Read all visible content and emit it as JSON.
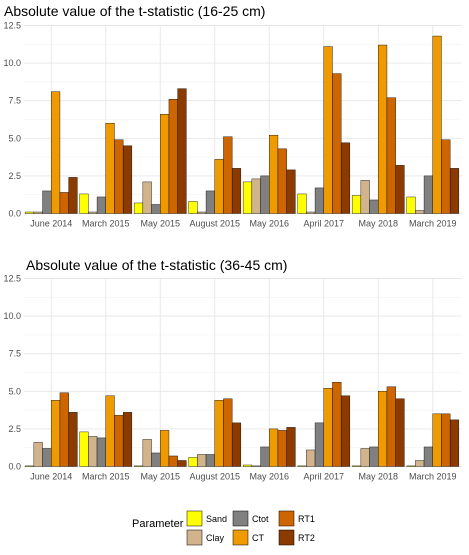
{
  "chart_data": [
    {
      "type": "bar",
      "title": "Absolute value of the t-statistic (16-25 cm)",
      "xlabel": "",
      "ylabel": "",
      "ylim": [
        0,
        12.5
      ],
      "yticks": [
        "0.0",
        "2.5",
        "5.0",
        "7.5",
        "10.0",
        "12.5"
      ],
      "grid": true,
      "categories": [
        "June 2014",
        "March 2015",
        "May 2015",
        "August 2015",
        "May 2016",
        "April 2017",
        "May 2018",
        "March 2019"
      ],
      "series": [
        {
          "name": "Sand",
          "color": "#ffff00",
          "values": [
            0.1,
            1.3,
            0.7,
            0.8,
            2.1,
            1.3,
            1.2,
            1.1
          ]
        },
        {
          "name": "Clay",
          "color": "#d2b48c",
          "values": [
            0.1,
            0.1,
            2.1,
            0.1,
            2.3,
            0.1,
            2.2,
            0.2
          ]
        },
        {
          "name": "Ctot",
          "color": "#808080",
          "values": [
            1.5,
            1.1,
            0.6,
            1.5,
            2.5,
            1.7,
            0.9,
            2.5
          ]
        },
        {
          "name": "CT",
          "color": "#ee9a00",
          "values": [
            8.1,
            6.0,
            6.6,
            3.6,
            5.2,
            11.1,
            11.2,
            11.8
          ]
        },
        {
          "name": "RT1",
          "color": "#cd6600",
          "values": [
            1.4,
            4.9,
            7.6,
            5.1,
            4.3,
            9.3,
            7.7,
            4.9
          ]
        },
        {
          "name": "RT2",
          "color": "#8b3a00",
          "values": [
            2.4,
            4.5,
            8.3,
            3.0,
            2.9,
            4.7,
            3.2,
            3.0
          ]
        }
      ]
    },
    {
      "type": "bar",
      "title": "Absolute value of the t-statistic (36-45 cm)",
      "xlabel": "",
      "ylabel": "",
      "ylim": [
        0,
        12.5
      ],
      "yticks": [
        "0.0",
        "2.5",
        "5.0",
        "7.5",
        "10.0",
        "12.5"
      ],
      "grid": true,
      "categories": [
        "June 2014",
        "March 2015",
        "May 2015",
        "August 2015",
        "May 2016",
        "April 2017",
        "May 2018",
        "March 2019"
      ],
      "series": [
        {
          "name": "Sand",
          "color": "#ffff00",
          "values": [
            0.0,
            2.3,
            0.0,
            0.6,
            0.1,
            0.0,
            0.0,
            0.0
          ]
        },
        {
          "name": "Clay",
          "color": "#d2b48c",
          "values": [
            1.6,
            2.0,
            1.8,
            0.8,
            0.0,
            1.1,
            1.2,
            0.4
          ]
        },
        {
          "name": "Ctot",
          "color": "#808080",
          "values": [
            1.2,
            1.9,
            0.9,
            0.8,
            1.3,
            2.9,
            1.3,
            1.3
          ]
        },
        {
          "name": "CT",
          "color": "#ee9a00",
          "values": [
            4.4,
            4.7,
            2.4,
            4.4,
            2.5,
            5.2,
            5.0,
            3.5
          ]
        },
        {
          "name": "RT1",
          "color": "#cd6600",
          "values": [
            4.9,
            3.4,
            0.7,
            4.5,
            2.4,
            5.6,
            5.3,
            3.5
          ]
        },
        {
          "name": "RT2",
          "color": "#8b3a00",
          "values": [
            3.6,
            3.6,
            0.4,
            2.9,
            2.6,
            4.7,
            4.5,
            3.1
          ]
        }
      ]
    }
  ],
  "legend": {
    "title": "Parameter",
    "items": [
      {
        "name": "Sand",
        "color": "#ffff00"
      },
      {
        "name": "Clay",
        "color": "#d2b48c"
      },
      {
        "name": "Ctot",
        "color": "#808080"
      },
      {
        "name": "CT",
        "color": "#ee9a00"
      },
      {
        "name": "RT1",
        "color": "#cd6600"
      },
      {
        "name": "RT2",
        "color": "#8b3a00"
      }
    ]
  }
}
